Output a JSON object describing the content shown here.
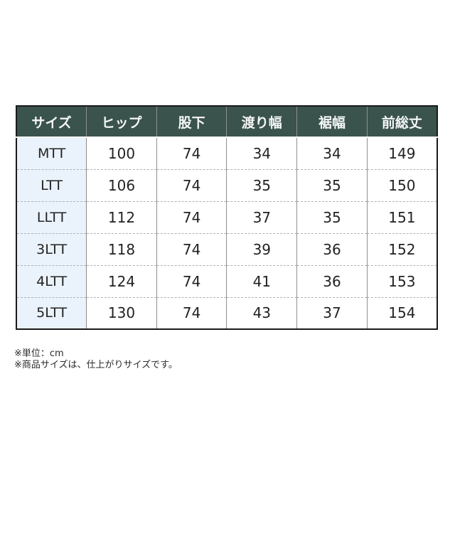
{
  "chart_data": {
    "type": "table",
    "title": "",
    "columns": [
      "サイズ",
      "ヒップ",
      "股下",
      "渡り幅",
      "裾幅",
      "前総丈"
    ],
    "rows": [
      [
        "MTT",
        "100",
        "74",
        "34",
        "34",
        "149"
      ],
      [
        "LTT",
        "106",
        "74",
        "35",
        "35",
        "150"
      ],
      [
        "LLTT",
        "112",
        "74",
        "37",
        "35",
        "151"
      ],
      [
        "3LTT",
        "118",
        "74",
        "39",
        "36",
        "152"
      ],
      [
        "4LTT",
        "124",
        "74",
        "41",
        "36",
        "153"
      ],
      [
        "5LTT",
        "130",
        "74",
        "43",
        "37",
        "154"
      ]
    ]
  },
  "notes": {
    "unit": "※単位：cm",
    "product_size": "※商品サイズは、仕上がりサイズです。"
  },
  "colors": {
    "header_bg": "#3b534d",
    "header_text": "#f4f7f6",
    "size_col_bg": "#eaf2fb",
    "table_text": "#222222",
    "outer_border": "#1b1b1b",
    "grid_line": "#8f8f8f",
    "dashed_line": "#b3b3b3",
    "note_text": "#2b2b2b",
    "page_bg": "#ffffff"
  }
}
